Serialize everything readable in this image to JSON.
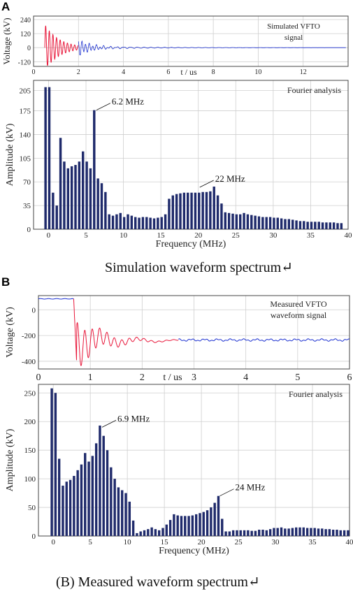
{
  "panels": {
    "a": {
      "letter": "A",
      "caption": "Simulation waveform spectrum↵"
    },
    "b": {
      "letter": "B",
      "caption": "(B) Measured waveform spectrum↵"
    }
  },
  "colors": {
    "bar": "#1f2a6b",
    "wave_early": "#e8173a",
    "wave_late": "#1a2fd0",
    "grid": "#cfcfcf"
  },
  "chart_data": [
    {
      "id": "a-time",
      "type": "line",
      "ylabel": "Voltage (kV)",
      "xlabel": "t / us",
      "annotation": [
        "Simulated VFTO",
        "signal"
      ],
      "xlim": [
        0,
        14
      ],
      "ylim": [
        -160,
        270
      ],
      "xticks": [
        "0",
        "2",
        "4",
        "6",
        "8",
        "10",
        "12"
      ],
      "yticks": [
        "240",
        "120",
        "0",
        "-120"
      ],
      "series": [
        {
          "segment": "early",
          "x_range": [
            0.5,
            2.0
          ],
          "values_desc": "damped oscillation around 0 kV, peak ~240 kV, trough ~-150 kV"
        },
        {
          "segment": "late",
          "x_range": [
            2.0,
            14.0
          ],
          "values_desc": "small damped oscillation decaying to ~0 kV"
        }
      ]
    },
    {
      "id": "a-spectrum",
      "type": "bar",
      "xlabel": "Frequency (MHz)",
      "ylabel": "Amplitude (kV)",
      "annotation": "Fourier analysis",
      "xlim": [
        -2,
        40
      ],
      "ylim": [
        0,
        220
      ],
      "xticks": [
        "0",
        "5",
        "10",
        "15",
        "20",
        "25",
        "30",
        "35",
        "40"
      ],
      "yticks": [
        "0",
        "35",
        "70",
        "105",
        "140",
        "175",
        "205"
      ],
      "labels": [
        {
          "text": "6.2 MHz",
          "x": 6.2,
          "y": 176
        },
        {
          "text": "22 MHz",
          "x": 20.0,
          "y": 62
        }
      ],
      "x": [
        -0.4,
        0.1,
        0.6,
        1.1,
        1.6,
        2.1,
        2.6,
        3.1,
        3.6,
        4.1,
        4.6,
        5.1,
        5.6,
        6.1,
        6.6,
        7.1,
        7.6,
        8.1,
        8.6,
        9.1,
        9.6,
        10.1,
        10.6,
        11.1,
        11.6,
        12.1,
        12.6,
        13.1,
        13.6,
        14.1,
        14.6,
        15.1,
        15.6,
        16.1,
        16.6,
        17.1,
        17.6,
        18.1,
        18.6,
        19.1,
        19.6,
        20.1,
        20.6,
        21.1,
        21.6,
        22.1,
        22.6,
        23.1,
        23.6,
        24.1,
        24.6,
        25.1,
        25.6,
        26.1,
        26.6,
        27.1,
        27.6,
        28.1,
        28.6,
        29.1,
        29.6,
        30.1,
        30.6,
        31.1,
        31.6,
        32.1,
        32.6,
        33.1,
        33.6,
        34.1,
        34.6,
        35.1,
        35.6,
        36.1,
        36.6,
        37.1,
        37.6,
        38.1,
        38.6,
        39.1
      ],
      "values": [
        210,
        210,
        54,
        35,
        135,
        100,
        90,
        93,
        95,
        100,
        115,
        100,
        90,
        176,
        75,
        68,
        55,
        22,
        20,
        22,
        24,
        18,
        22,
        20,
        18,
        17,
        18,
        18,
        17,
        16,
        17,
        18,
        22,
        45,
        50,
        52,
        53,
        54,
        54,
        54,
        54,
        54,
        55,
        55,
        56,
        63,
        50,
        38,
        25,
        24,
        23,
        22,
        22,
        24,
        22,
        21,
        20,
        19,
        18,
        18,
        18,
        17,
        17,
        16,
        15,
        15,
        14,
        13,
        12,
        12,
        11,
        11,
        11,
        11,
        10,
        10,
        10,
        10,
        9,
        9
      ]
    },
    {
      "id": "b-time",
      "type": "line",
      "ylabel": "Voltage (kV)",
      "xlabel": "t / us",
      "annotation": [
        "Measured VFTO",
        "waveform signal"
      ],
      "xlim": [
        0,
        6
      ],
      "ylim": [
        -460,
        110
      ],
      "xticks": [
        "0",
        "1",
        "2",
        "3",
        "4",
        "5",
        "6"
      ],
      "yticks": [
        "0",
        "-200",
        "-400"
      ],
      "series": [
        {
          "segment": "early",
          "x_range": [
            0.0,
            0.68
          ],
          "values_desc": "flat near +85 kV"
        },
        {
          "segment": "drop",
          "x_range": [
            0.68,
            2.7
          ],
          "values_desc": "sharp drop to ~-440 kV, oscillating and settling to ~-240 kV"
        },
        {
          "segment": "late",
          "x_range": [
            2.7,
            6.0
          ],
          "values_desc": "near -240 kV with noise"
        }
      ]
    },
    {
      "id": "b-spectrum",
      "type": "bar",
      "xlabel": "Frequency (MHz)",
      "ylabel": "Amplitude (kV)",
      "annotation": "Fourier analysis",
      "xlim": [
        -2,
        40
      ],
      "ylim": [
        0,
        265
      ],
      "xticks": [
        "0",
        "5",
        "10",
        "15",
        "20",
        "25",
        "30",
        "35",
        "40"
      ],
      "yticks": [
        "0",
        "50",
        "100",
        "150",
        "200",
        "250"
      ],
      "labels": [
        {
          "text": "6.9 MHz",
          "x": 6.4,
          "y": 190
        },
        {
          "text": "24 MHz",
          "x": 22.3,
          "y": 70
        }
      ],
      "x": [
        -0.2,
        0.3,
        0.8,
        1.3,
        1.8,
        2.3,
        2.8,
        3.3,
        3.8,
        4.3,
        4.8,
        5.3,
        5.8,
        6.3,
        6.8,
        7.3,
        7.8,
        8.3,
        8.8,
        9.3,
        9.8,
        10.3,
        10.8,
        11.3,
        11.8,
        12.3,
        12.8,
        13.3,
        13.8,
        14.3,
        14.8,
        15.3,
        15.8,
        16.3,
        16.8,
        17.3,
        17.8,
        18.3,
        18.8,
        19.3,
        19.8,
        20.3,
        20.8,
        21.3,
        21.8,
        22.3,
        22.8,
        23.3,
        23.8,
        24.3,
        24.8,
        25.3,
        25.8,
        26.3,
        26.8,
        27.3,
        27.8,
        28.3,
        28.8,
        29.3,
        29.8,
        30.3,
        30.8,
        31.3,
        31.8,
        32.3,
        32.8,
        33.3,
        33.8,
        34.3,
        34.8,
        35.3,
        35.8,
        36.3,
        36.8,
        37.3,
        37.8,
        38.3,
        38.8,
        39.3,
        39.8
      ],
      "values": [
        258,
        250,
        135,
        88,
        95,
        98,
        105,
        115,
        125,
        145,
        130,
        140,
        162,
        193,
        175,
        150,
        120,
        100,
        85,
        80,
        75,
        60,
        27,
        5,
        8,
        10,
        12,
        15,
        12,
        10,
        14,
        20,
        28,
        38,
        36,
        35,
        35,
        35,
        36,
        38,
        40,
        42,
        45,
        50,
        58,
        70,
        30,
        8,
        8,
        10,
        10,
        10,
        10,
        10,
        9,
        9,
        11,
        11,
        10,
        12,
        14,
        14,
        15,
        13,
        13,
        14,
        15,
        15,
        15,
        14,
        14,
        14,
        13,
        13,
        12,
        12,
        11,
        11,
        10,
        10,
        10
      ]
    }
  ]
}
